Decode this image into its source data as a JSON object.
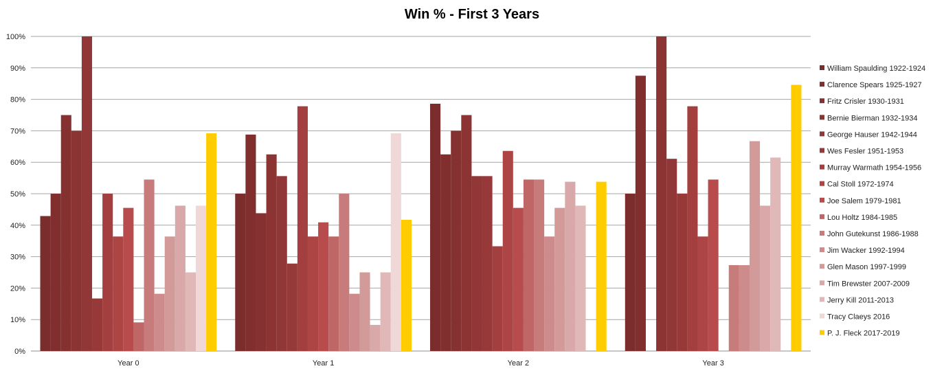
{
  "chart_data": {
    "type": "bar",
    "title": "Win % - First 3 Years",
    "xlabel": "",
    "ylabel": "",
    "categories": [
      "Year 0",
      "Year 1",
      "Year 2",
      "Year 3"
    ],
    "ylim": [
      0,
      100
    ],
    "yticks": [
      "0%",
      "10%",
      "20%",
      "30%",
      "40%",
      "50%",
      "60%",
      "70%",
      "80%",
      "90%",
      "100%"
    ],
    "grid": true,
    "legend_position": "right",
    "series": [
      {
        "name": "William Spaulding 1922-1924",
        "color": "#7b2c2c",
        "values": [
          42.9,
          50.0,
          78.6,
          50.0
        ]
      },
      {
        "name": "Clarence Spears 1925-1927",
        "color": "#802e2e",
        "values": [
          50.0,
          68.8,
          62.5,
          87.5
        ]
      },
      {
        "name": "Fritz Crisler 1930-1931",
        "color": "#863131",
        "values": [
          75.0,
          43.8,
          70.0,
          null
        ]
      },
      {
        "name": "Bernie Bierman 1932-1934",
        "color": "#8c3434",
        "values": [
          70.0,
          62.5,
          75.0,
          100.0
        ]
      },
      {
        "name": "George Hauser 1942-1944",
        "color": "#923737",
        "values": [
          100.0,
          55.6,
          55.6,
          61.1
        ]
      },
      {
        "name": "Wes Fesler 1951-1953",
        "color": "#983939",
        "values": [
          16.7,
          27.8,
          55.6,
          50.0
        ]
      },
      {
        "name": "Murray Warmath 1954-1956",
        "color": "#a33f3f",
        "values": [
          50.0,
          77.8,
          33.3,
          77.8
        ]
      },
      {
        "name": "Cal Stoll 1972-1974",
        "color": "#ad4545",
        "values": [
          36.4,
          36.4,
          63.6,
          36.4
        ]
      },
      {
        "name": "Joe Salem 1979-1981",
        "color": "#b84c4c",
        "values": [
          45.5,
          40.9,
          45.5,
          54.5
        ]
      },
      {
        "name": "Lou Holtz 1984-1985",
        "color": "#bf6666",
        "values": [
          9.1,
          36.4,
          54.5,
          null
        ]
      },
      {
        "name": "John Gutekunst 1986-1988",
        "color": "#c77b7b",
        "values": [
          54.5,
          50.0,
          54.5,
          27.3
        ]
      },
      {
        "name": "Jim Wacker 1992-1994",
        "color": "#ce8b8b",
        "values": [
          18.2,
          18.2,
          36.4,
          27.3
        ]
      },
      {
        "name": "Glen Mason 1997-1999",
        "color": "#d39a9a",
        "values": [
          36.4,
          25.0,
          45.5,
          66.7
        ]
      },
      {
        "name": "Tim Brewster 2007-2009",
        "color": "#d9a9a9",
        "values": [
          46.2,
          8.3,
          53.8,
          46.2
        ]
      },
      {
        "name": "Jerry Kill 2011-2013",
        "color": "#e0b8b8",
        "values": [
          25.0,
          25.0,
          46.2,
          61.5
        ]
      },
      {
        "name": "Tracy Claeys 2016",
        "color": "#f0d8d8",
        "values": [
          46.2,
          69.2,
          null,
          null
        ]
      },
      {
        "name": "P. J. Fleck 2017-2019",
        "color": "#ffcc00",
        "values": [
          69.2,
          41.7,
          53.8,
          84.6
        ]
      }
    ]
  }
}
